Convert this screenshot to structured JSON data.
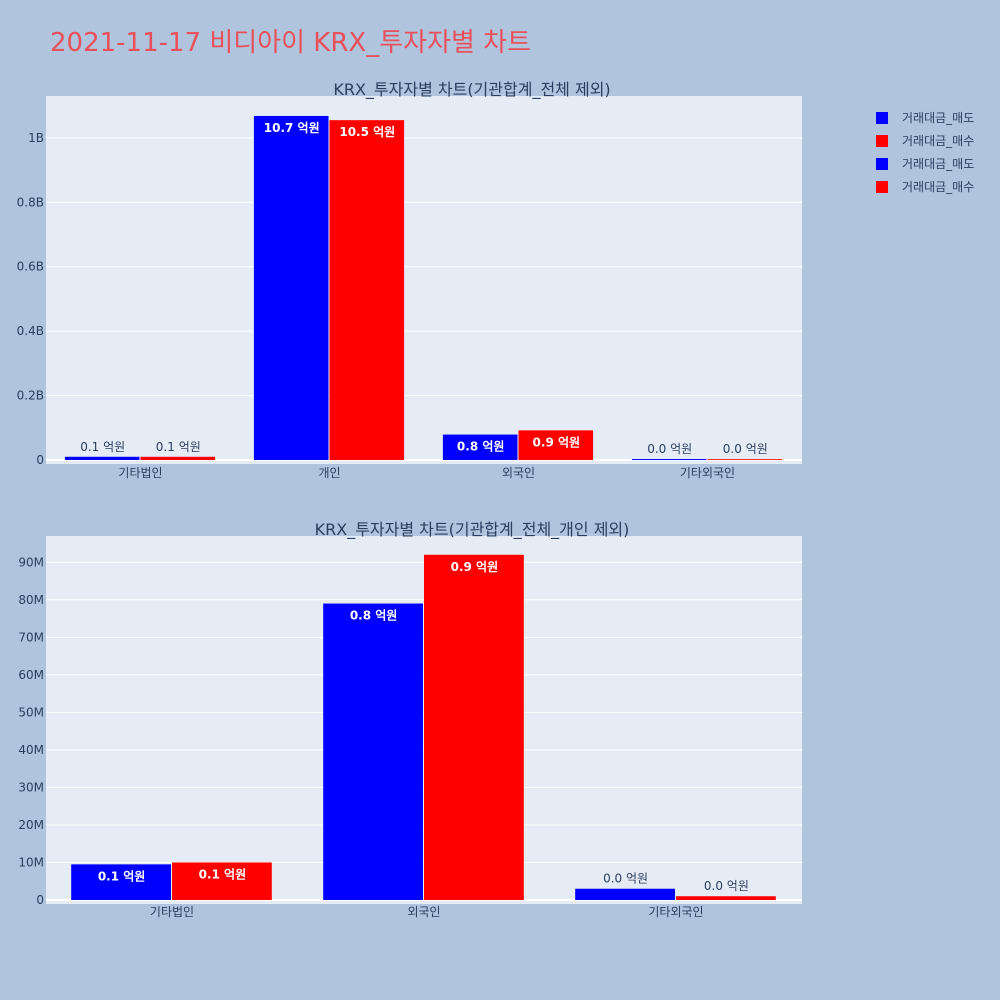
{
  "page_title": "2021-11-17 비디아이 KRX_투자자별 차트",
  "colors": {
    "background": "#b0c4de",
    "plot_bg": "#e5ecf6",
    "sell": "#0000ff",
    "buy": "#ff0000",
    "title": "#e9505a",
    "text": "#2a3f5f"
  },
  "legend": [
    {
      "label": "거래대금_매도",
      "color": "#0000ff"
    },
    {
      "label": "거래대금_매수",
      "color": "#ff0000"
    },
    {
      "label": "거래대금_매도",
      "color": "#0000ff"
    },
    {
      "label": "거래대금_매수",
      "color": "#ff0000"
    }
  ],
  "chart_data": [
    {
      "type": "bar",
      "title": "KRX_투자자별 차트(기관합계_전체 제외)",
      "categories": [
        "기타법인",
        "개인",
        "외국인",
        "기타외국인"
      ],
      "series": [
        {
          "name": "거래대금_매도",
          "color": "#0000ff",
          "values": [
            10000000,
            1068000000,
            79000000,
            3000000
          ],
          "labels": [
            "0.1 억원",
            "10.7 억원",
            "0.8 억원",
            "0.0 억원"
          ]
        },
        {
          "name": "거래대금_매수",
          "color": "#ff0000",
          "values": [
            10000000,
            1055000000,
            92000000,
            1000000
          ],
          "labels": [
            "0.1 억원",
            "10.5 억원",
            "0.9 억원",
            "0.0 억원"
          ]
        }
      ],
      "ylim": [
        0,
        1130000000
      ],
      "yticks": [
        0,
        200000000,
        400000000,
        600000000,
        800000000,
        1000000000
      ],
      "ytick_labels": [
        "0",
        "0.2B",
        "0.4B",
        "0.6B",
        "0.8B",
        "1B"
      ]
    },
    {
      "type": "bar",
      "title": "KRX_투자자별 차트(기관합계_전체_개인 제외)",
      "categories": [
        "기타법인",
        "외국인",
        "기타외국인"
      ],
      "series": [
        {
          "name": "거래대금_매도",
          "color": "#0000ff",
          "values": [
            9500000,
            79000000,
            3000000
          ],
          "labels": [
            "0.1 억원",
            "0.8 억원",
            "0.0 억원"
          ]
        },
        {
          "name": "거래대금_매수",
          "color": "#ff0000",
          "values": [
            10000000,
            92000000,
            1000000
          ],
          "labels": [
            "0.1 억원",
            "0.9 억원",
            "0.0 억원"
          ]
        }
      ],
      "ylim": [
        0,
        97000000
      ],
      "yticks": [
        0,
        10000000,
        20000000,
        30000000,
        40000000,
        50000000,
        60000000,
        70000000,
        80000000,
        90000000
      ],
      "ytick_labels": [
        "0",
        "10M",
        "20M",
        "30M",
        "40M",
        "50M",
        "60M",
        "70M",
        "80M",
        "90M"
      ]
    }
  ]
}
